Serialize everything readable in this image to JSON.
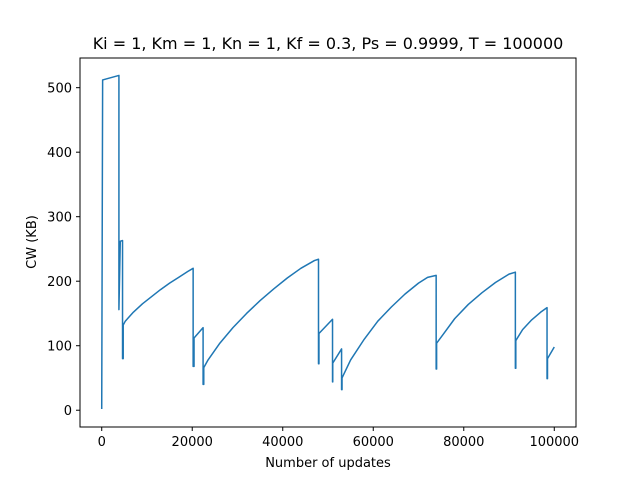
{
  "chart_data": {
    "type": "line",
    "title": "Ki = 1, Km = 1, Kn = 1, Kf = 0.3, Ps = 0.9999, T = 100000",
    "xlabel": "Number of updates",
    "ylabel": "CW (KB)",
    "xlim": [
      -4800,
      104800
    ],
    "ylim": [
      -26,
      546
    ],
    "xticks": [
      0,
      20000,
      40000,
      60000,
      80000,
      100000
    ],
    "yticks": [
      0,
      100,
      200,
      300,
      400,
      500
    ],
    "grid": false,
    "legend": "none",
    "colors": {
      "series": "#1f77b4"
    },
    "series": [
      {
        "x": [
          0,
          200,
          3800,
          3800,
          4100,
          4600,
          4600,
          4750,
          4750,
          5200,
          7000,
          9000,
          11000,
          13000,
          15000,
          17000,
          19000,
          20200,
          20200,
          20400,
          20400,
          22400,
          22400,
          22550,
          22550,
          23500,
          26000,
          29000,
          32000,
          35000,
          38000,
          41000,
          44000,
          47000,
          47900,
          47900,
          48000,
          48000,
          51000,
          51000,
          51050,
          51050,
          53000,
          53000,
          53100,
          53100,
          55000,
          58000,
          61000,
          64000,
          67000,
          70000,
          72000,
          73900,
          73900,
          74000,
          74000,
          75500,
          78000,
          81000,
          84000,
          87000,
          90000,
          91400,
          91400,
          91500,
          91500,
          93000,
          95000,
          97000,
          98400,
          98400,
          98500,
          98500,
          100000
        ],
        "y": [
          2,
          512,
          519,
          156,
          262,
          263,
          80,
          80,
          132,
          138,
          152,
          165,
          176,
          187,
          197,
          206,
          215,
          220,
          68,
          68,
          112,
          128,
          40,
          40,
          66,
          78,
          103,
          128,
          150,
          170,
          188,
          205,
          220,
          232,
          234,
          72,
          72,
          119,
          141,
          44,
          44,
          73,
          95,
          32,
          32,
          50,
          78,
          110,
          138,
          160,
          180,
          197,
          206,
          209,
          64,
          64,
          104,
          118,
          142,
          164,
          182,
          198,
          211,
          214,
          65,
          65,
          108,
          125,
          140,
          152,
          159,
          49,
          49,
          80,
          98
        ]
      }
    ]
  }
}
